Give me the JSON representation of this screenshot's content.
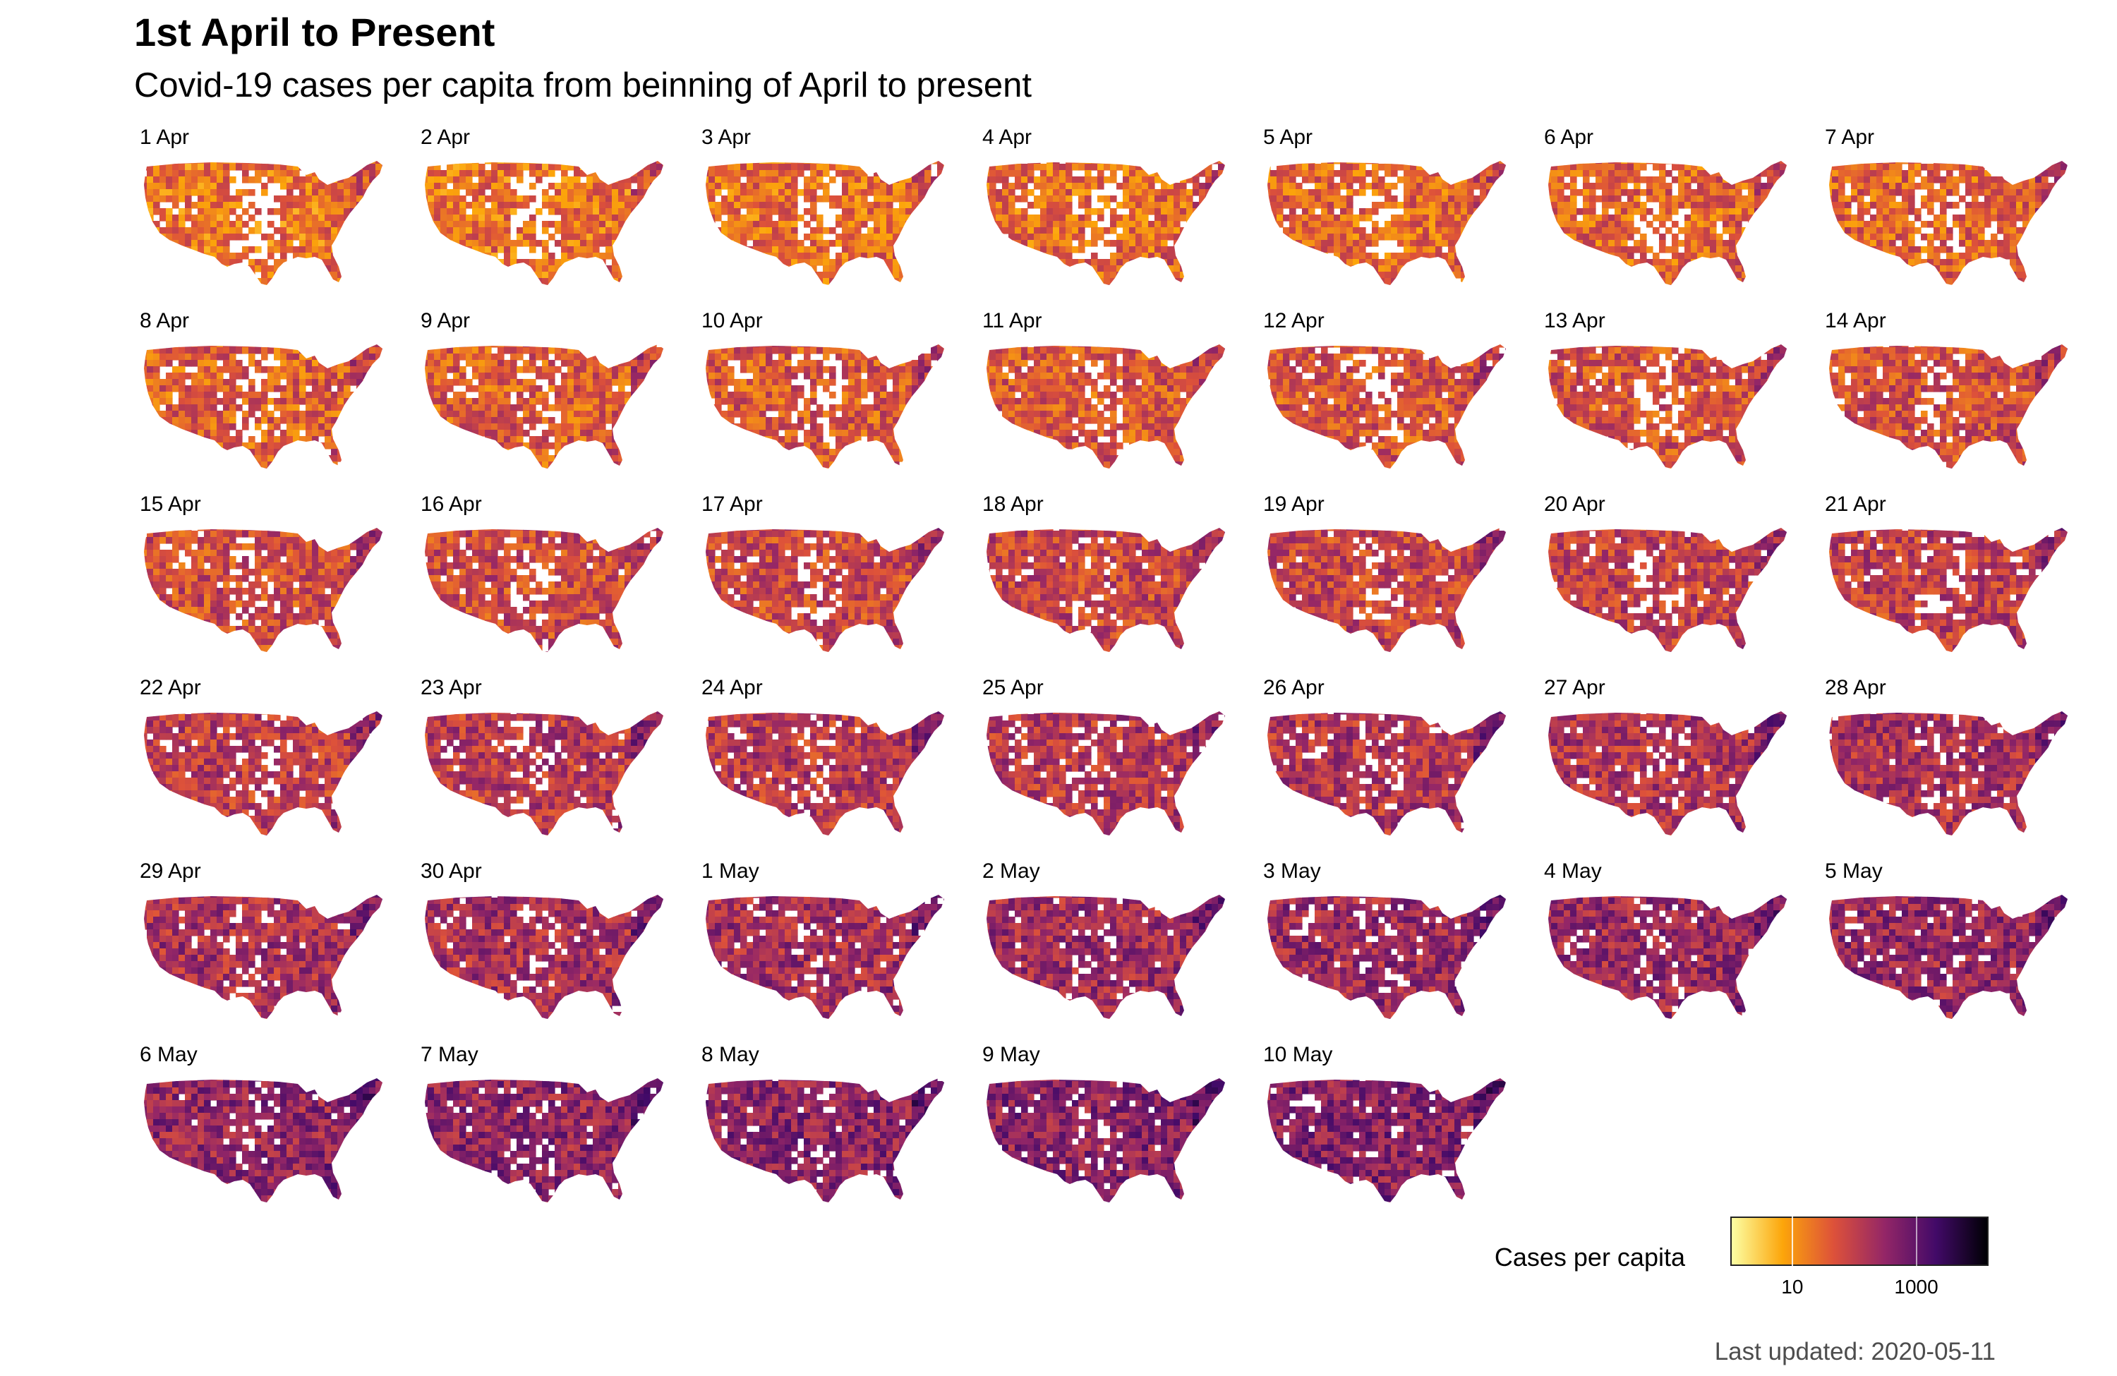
{
  "header": {
    "title": "1st April to Present",
    "subtitle": "Covid-19 cases per capita from beinning of April to present"
  },
  "panels": [
    {
      "label": "1 Apr",
      "intensity": 0.1
    },
    {
      "label": "2 Apr",
      "intensity": 0.12
    },
    {
      "label": "3 Apr",
      "intensity": 0.14
    },
    {
      "label": "4 Apr",
      "intensity": 0.16
    },
    {
      "label": "5 Apr",
      "intensity": 0.18
    },
    {
      "label": "6 Apr",
      "intensity": 0.2
    },
    {
      "label": "7 Apr",
      "intensity": 0.22
    },
    {
      "label": "8 Apr",
      "intensity": 0.24
    },
    {
      "label": "9 Apr",
      "intensity": 0.26
    },
    {
      "label": "10 Apr",
      "intensity": 0.28
    },
    {
      "label": "11 Apr",
      "intensity": 0.3
    },
    {
      "label": "12 Apr",
      "intensity": 0.32
    },
    {
      "label": "13 Apr",
      "intensity": 0.34
    },
    {
      "label": "14 Apr",
      "intensity": 0.36
    },
    {
      "label": "15 Apr",
      "intensity": 0.38
    },
    {
      "label": "16 Apr",
      "intensity": 0.4
    },
    {
      "label": "17 Apr",
      "intensity": 0.42
    },
    {
      "label": "18 Apr",
      "intensity": 0.44
    },
    {
      "label": "19 Apr",
      "intensity": 0.46
    },
    {
      "label": "20 Apr",
      "intensity": 0.48
    },
    {
      "label": "21 Apr",
      "intensity": 0.5
    },
    {
      "label": "22 Apr",
      "intensity": 0.52
    },
    {
      "label": "23 Apr",
      "intensity": 0.54
    },
    {
      "label": "24 Apr",
      "intensity": 0.56
    },
    {
      "label": "25 Apr",
      "intensity": 0.58
    },
    {
      "label": "26 Apr",
      "intensity": 0.6
    },
    {
      "label": "27 Apr",
      "intensity": 0.62
    },
    {
      "label": "28 Apr",
      "intensity": 0.64
    },
    {
      "label": "29 Apr",
      "intensity": 0.66
    },
    {
      "label": "30 Apr",
      "intensity": 0.68
    },
    {
      "label": "1 May",
      "intensity": 0.7
    },
    {
      "label": "2 May",
      "intensity": 0.72
    },
    {
      "label": "3 May",
      "intensity": 0.74
    },
    {
      "label": "4 May",
      "intensity": 0.76
    },
    {
      "label": "5 May",
      "intensity": 0.78
    },
    {
      "label": "6 May",
      "intensity": 0.8
    },
    {
      "label": "7 May",
      "intensity": 0.82
    },
    {
      "label": "8 May",
      "intensity": 0.84
    },
    {
      "label": "9 May",
      "intensity": 0.86
    },
    {
      "label": "10 May",
      "intensity": 0.88
    }
  ],
  "legend": {
    "title": "Cases per capita",
    "scale": "log",
    "gradient_colors": [
      "#fcffa4",
      "#fca50a",
      "#dd513a",
      "#932667",
      "#420a68",
      "#000004"
    ],
    "ticks": [
      {
        "label": "10",
        "value": 10
      },
      {
        "label": "1000",
        "value": 1000
      }
    ]
  },
  "footer": {
    "last_updated": "Last updated: 2020-05-11"
  }
}
